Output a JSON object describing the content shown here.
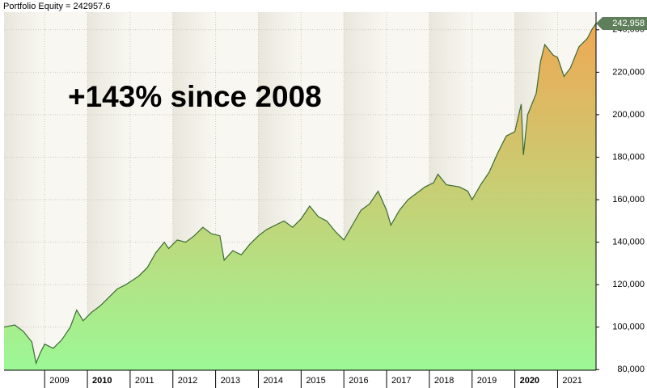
{
  "chart_data": {
    "type": "area",
    "title": "Portfolio Equity = 242957.6",
    "annotation": "+143% since 2008",
    "last_value_label": "242,958",
    "x": [
      2008.05,
      2008.3,
      2008.5,
      2008.7,
      2008.8,
      2008.9,
      2009.0,
      2009.2,
      2009.4,
      2009.6,
      2009.75,
      2009.9,
      2010.1,
      2010.3,
      2010.5,
      2010.7,
      2010.9,
      2011.2,
      2011.4,
      2011.6,
      2011.8,
      2011.9,
      2012.1,
      2012.3,
      2012.5,
      2012.7,
      2012.9,
      2013.1,
      2013.2,
      2013.4,
      2013.6,
      2013.8,
      2014.0,
      2014.2,
      2014.4,
      2014.6,
      2014.8,
      2015.0,
      2015.2,
      2015.4,
      2015.6,
      2015.8,
      2016.0,
      2016.2,
      2016.4,
      2016.6,
      2016.8,
      2017.0,
      2017.1,
      2017.3,
      2017.5,
      2017.7,
      2017.9,
      2018.1,
      2018.2,
      2018.4,
      2018.7,
      2018.9,
      2019.0,
      2019.2,
      2019.4,
      2019.6,
      2019.8,
      2020.0,
      2020.15,
      2020.2,
      2020.3,
      2020.5,
      2020.6,
      2020.7,
      2020.9,
      2021.0,
      2021.15,
      2021.3,
      2021.5,
      2021.7,
      2021.8,
      2021.9
    ],
    "values": [
      100000,
      101000,
      98000,
      93000,
      83000,
      88000,
      92000,
      90000,
      94000,
      100000,
      108000,
      103000,
      107000,
      110000,
      114000,
      118000,
      120000,
      124000,
      128000,
      135000,
      140000,
      137000,
      141000,
      140000,
      143000,
      147000,
      144000,
      143000,
      131500,
      136000,
      134000,
      139000,
      143000,
      146000,
      148000,
      150000,
      147000,
      151000,
      157000,
      152000,
      150000,
      145000,
      141000,
      148000,
      155000,
      158000,
      164000,
      155000,
      148000,
      155000,
      160000,
      163000,
      166000,
      168000,
      172000,
      167000,
      166000,
      164000,
      160000,
      167000,
      173000,
      182000,
      190000,
      192000,
      205000,
      181000,
      200000,
      210000,
      225000,
      233000,
      228000,
      227000,
      218000,
      222000,
      232000,
      236000,
      240000,
      242957.6
    ],
    "line_color": "#3b6b33",
    "fill_colors": [
      "#f2a552",
      "#9cf896"
    ],
    "xlim": [
      2008.05,
      2021.9
    ],
    "ylim": [
      79700,
      248300
    ],
    "xticks": [
      2009,
      2010,
      2011,
      2012,
      2013,
      2014,
      2015,
      2016,
      2017,
      2018,
      2019,
      2020,
      2021
    ],
    "yticks": [
      {
        "value": 80000,
        "label": "80,000"
      },
      {
        "value": 100000,
        "label": "100,000"
      },
      {
        "value": 120000,
        "label": "120,000"
      },
      {
        "value": 140000,
        "label": "140,000"
      },
      {
        "value": 160000,
        "label": "160,000"
      },
      {
        "value": 180000,
        "label": "180,000"
      },
      {
        "value": 200000,
        "label": "200,000"
      },
      {
        "value": 220000,
        "label": "220,000"
      },
      {
        "value": 240000,
        "label": "240,000"
      }
    ],
    "grid": true
  }
}
